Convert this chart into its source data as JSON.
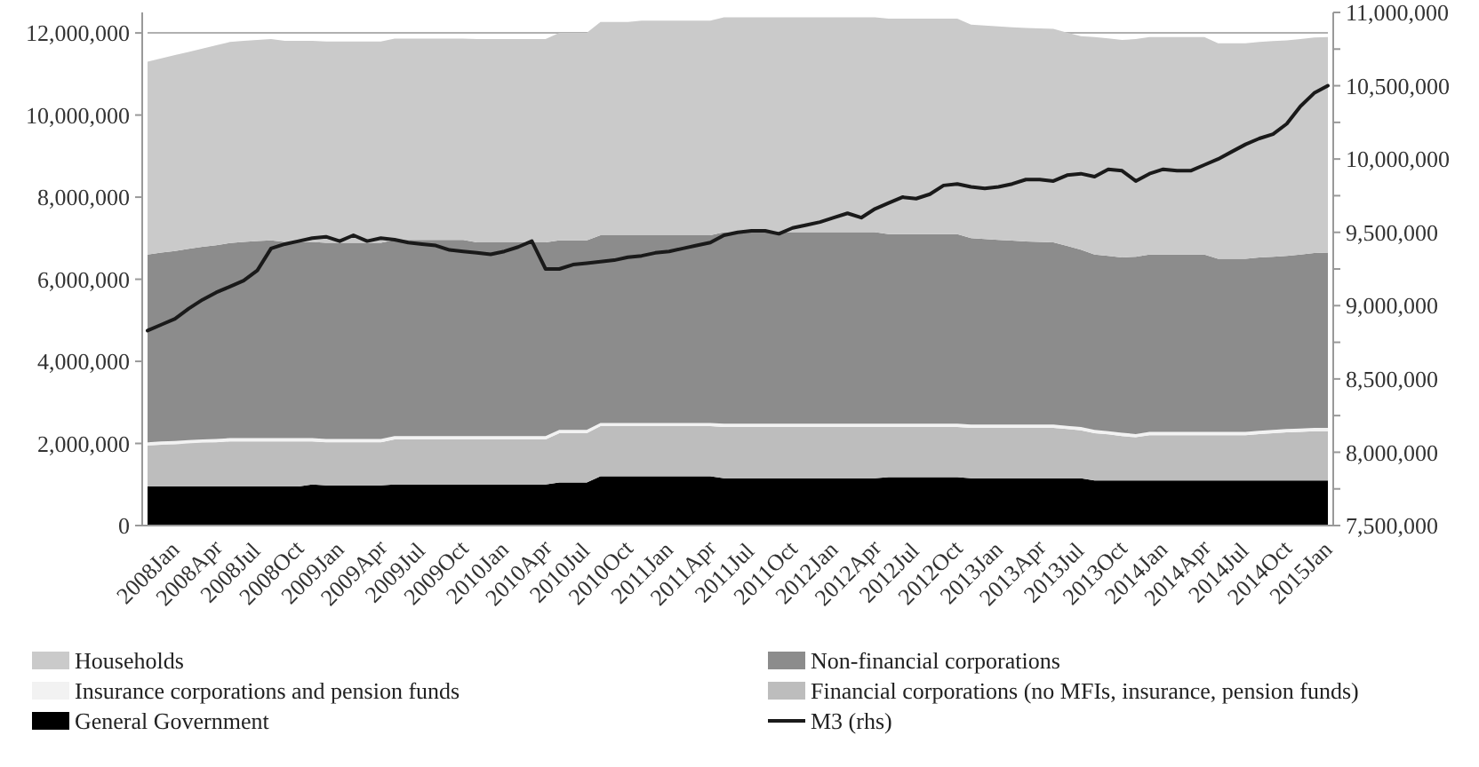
{
  "chart_data": {
    "type": "area",
    "stacked": true,
    "legend": "bottom",
    "grid": "y",
    "categories": [
      "2008Jan",
      null,
      null,
      "2008Apr",
      null,
      null,
      "2008Jul",
      null,
      null,
      "2008Oct",
      null,
      null,
      "2009Jan",
      null,
      null,
      "2009Apr",
      null,
      null,
      "2009Jul",
      null,
      null,
      "2009Oct",
      null,
      null,
      "2010Jan",
      null,
      null,
      "2010Apr",
      null,
      null,
      "2010Jul",
      null,
      null,
      "2010Oct",
      null,
      null,
      "2011Jan",
      null,
      null,
      "2011Apr",
      null,
      null,
      "2011Jul",
      null,
      null,
      "2011Oct",
      null,
      null,
      "2012Jan",
      null,
      null,
      "2012Apr",
      null,
      null,
      "2012Jul",
      null,
      null,
      "2012Oct",
      null,
      null,
      "2013Jan",
      null,
      null,
      "2013Apr",
      null,
      null,
      "2013Jul",
      null,
      null,
      "2013Oct",
      null,
      null,
      "2014Jan",
      null,
      null,
      "2014Apr",
      null,
      null,
      "2014Jul",
      null,
      null,
      "2014Oct",
      null,
      null,
      "2015Jan",
      null,
      null
    ],
    "ylim": [
      0,
      12500000
    ],
    "yticks": [
      0,
      {
        "value": 2000000,
        "label": "2,000,000"
      },
      {
        "value": 4000000,
        "label": "4,000,000"
      },
      {
        "value": 6000000,
        "label": "6,000,000"
      },
      {
        "value": 8000000,
        "label": "8,000,000"
      },
      {
        "value": 10000000,
        "label": "10,000,000"
      },
      {
        "value": 12000000,
        "label": "12,000,000"
      }
    ],
    "y2lim": [
      7500000,
      11000000
    ],
    "y2ticks": [
      {
        "value": 7500000,
        "label": "7,500,000"
      },
      {
        "value": 7750000,
        "label": null
      },
      {
        "value": 8000000,
        "label": "8,000,000"
      },
      {
        "value": 8250000,
        "label": null
      },
      {
        "value": 8500000,
        "label": "8,500,000"
      },
      {
        "value": 8750000,
        "label": null
      },
      {
        "value": 9000000,
        "label": "9,000,000"
      },
      {
        "value": 9250000,
        "label": null
      },
      {
        "value": 9500000,
        "label": "9,500,000"
      },
      {
        "value": 9750000,
        "label": null
      },
      {
        "value": 10000000,
        "label": "10,000,000"
      },
      {
        "value": 10250000,
        "label": null
      },
      {
        "value": 10500000,
        "label": "10,500,000"
      },
      {
        "value": 10750000,
        "label": null
      },
      {
        "value": 11000000,
        "label": "11,000,000"
      }
    ],
    "series": [
      {
        "name": "General Government",
        "color": "#000000",
        "values": [
          950000,
          950000,
          950000,
          950000,
          950000,
          950000,
          950000,
          950000,
          950000,
          950000,
          950000,
          950000,
          1000000,
          980000,
          980000,
          980000,
          980000,
          980000,
          1000000,
          1000000,
          1000000,
          1000000,
          1000000,
          1000000,
          1000000,
          1000000,
          1000000,
          1000000,
          1000000,
          1000000,
          1050000,
          1050000,
          1050000,
          1200000,
          1200000,
          1200000,
          1200000,
          1200000,
          1200000,
          1200000,
          1200000,
          1200000,
          1150000,
          1150000,
          1150000,
          1150000,
          1150000,
          1150000,
          1150000,
          1150000,
          1150000,
          1150000,
          1150000,
          1150000,
          1180000,
          1180000,
          1180000,
          1180000,
          1180000,
          1180000,
          1150000,
          1150000,
          1150000,
          1150000,
          1150000,
          1150000,
          1150000,
          1150000,
          1150000,
          1100000,
          1100000,
          1100000,
          1100000,
          1100000,
          1100000,
          1100000,
          1100000,
          1100000,
          1100000,
          1100000,
          1100000,
          1100000,
          1100000,
          1100000,
          1100000,
          1100000,
          1100000
        ]
      },
      {
        "name": "Financial corporations (no MFIs, insurance, pension funds)",
        "color": "#bdbdbd",
        "values": [
          1000000,
          1020000,
          1030000,
          1050000,
          1070000,
          1080000,
          1100000,
          1100000,
          1100000,
          1100000,
          1100000,
          1100000,
          1050000,
          1050000,
          1050000,
          1050000,
          1050000,
          1050000,
          1100000,
          1100000,
          1100000,
          1100000,
          1100000,
          1100000,
          1100000,
          1100000,
          1100000,
          1100000,
          1100000,
          1100000,
          1200000,
          1200000,
          1200000,
          1220000,
          1220000,
          1220000,
          1220000,
          1220000,
          1220000,
          1220000,
          1220000,
          1220000,
          1250000,
          1250000,
          1250000,
          1250000,
          1250000,
          1250000,
          1250000,
          1250000,
          1250000,
          1250000,
          1250000,
          1250000,
          1220000,
          1220000,
          1220000,
          1220000,
          1220000,
          1220000,
          1230000,
          1230000,
          1230000,
          1230000,
          1230000,
          1230000,
          1230000,
          1200000,
          1170000,
          1150000,
          1120000,
          1080000,
          1050000,
          1100000,
          1100000,
          1100000,
          1100000,
          1100000,
          1100000,
          1100000,
          1100000,
          1130000,
          1150000,
          1170000,
          1180000,
          1200000,
          1200000
        ]
      },
      {
        "name": "Insurance corporations and pension funds",
        "color": "#f2f2f2",
        "values": [
          80000,
          80000,
          80000,
          80000,
          80000,
          80000,
          80000,
          80000,
          80000,
          80000,
          80000,
          80000,
          80000,
          80000,
          80000,
          80000,
          80000,
          80000,
          80000,
          80000,
          80000,
          80000,
          80000,
          80000,
          80000,
          80000,
          80000,
          80000,
          80000,
          80000,
          80000,
          80000,
          80000,
          80000,
          80000,
          80000,
          80000,
          80000,
          80000,
          80000,
          80000,
          80000,
          80000,
          80000,
          80000,
          80000,
          80000,
          80000,
          80000,
          80000,
          80000,
          80000,
          80000,
          80000,
          80000,
          80000,
          80000,
          80000,
          80000,
          80000,
          80000,
          80000,
          80000,
          80000,
          80000,
          80000,
          80000,
          80000,
          80000,
          80000,
          80000,
          80000,
          80000,
          80000,
          80000,
          80000,
          80000,
          80000,
          80000,
          80000,
          80000,
          80000,
          80000,
          80000,
          80000,
          80000,
          80000
        ]
      },
      {
        "name": "Non-financial corporations",
        "color": "#8c8c8c",
        "values": [
          4570000,
          4600000,
          4630000,
          4660000,
          4690000,
          4720000,
          4750000,
          4780000,
          4800000,
          4820000,
          4780000,
          4780000,
          4780000,
          4780000,
          4780000,
          4780000,
          4780000,
          4780000,
          4780000,
          4780000,
          4780000,
          4780000,
          4780000,
          4780000,
          4720000,
          4720000,
          4720000,
          4720000,
          4720000,
          4720000,
          4620000,
          4620000,
          4620000,
          4570000,
          4570000,
          4570000,
          4570000,
          4570000,
          4570000,
          4570000,
          4570000,
          4570000,
          4670000,
          4670000,
          4670000,
          4670000,
          4670000,
          4670000,
          4670000,
          4670000,
          4670000,
          4670000,
          4670000,
          4670000,
          4620000,
          4620000,
          4620000,
          4620000,
          4620000,
          4620000,
          4540000,
          4520000,
          4500000,
          4480000,
          4460000,
          4450000,
          4440000,
          4380000,
          4320000,
          4270000,
          4270000,
          4270000,
          4320000,
          4320000,
          4320000,
          4320000,
          4320000,
          4320000,
          4220000,
          4220000,
          4220000,
          4220000,
          4220000,
          4220000,
          4240000,
          4260000,
          4270000
        ]
      },
      {
        "name": "Households",
        "color": "#cacaca",
        "values": [
          4700000,
          4730000,
          4770000,
          4800000,
          4830000,
          4870000,
          4900000,
          4900000,
          4900000,
          4900000,
          4900000,
          4900000,
          4900000,
          4900000,
          4900000,
          4900000,
          4900000,
          4900000,
          4900000,
          4900000,
          4900000,
          4900000,
          4900000,
          4900000,
          4950000,
          4950000,
          4950000,
          4950000,
          4950000,
          4950000,
          5050000,
          5050000,
          5050000,
          5200000,
          5200000,
          5200000,
          5230000,
          5230000,
          5230000,
          5230000,
          5230000,
          5230000,
          5230000,
          5230000,
          5230000,
          5230000,
          5230000,
          5230000,
          5230000,
          5230000,
          5230000,
          5230000,
          5230000,
          5230000,
          5250000,
          5250000,
          5250000,
          5250000,
          5250000,
          5250000,
          5200000,
          5200000,
          5200000,
          5200000,
          5200000,
          5200000,
          5200000,
          5200000,
          5200000,
          5300000,
          5300000,
          5300000,
          5300000,
          5300000,
          5300000,
          5300000,
          5300000,
          5300000,
          5250000,
          5250000,
          5250000,
          5250000,
          5250000,
          5250000,
          5250000,
          5250000,
          5250000
        ]
      },
      {
        "name": "M3 (rhs)",
        "type": "line",
        "axis": "y2",
        "color": "#1a1a1a",
        "values": [
          8830000,
          8870000,
          8910000,
          8980000,
          9040000,
          9090000,
          9130000,
          9170000,
          9240000,
          9390000,
          9420000,
          9440000,
          9460000,
          9470000,
          9440000,
          9480000,
          9440000,
          9460000,
          9450000,
          9430000,
          9420000,
          9410000,
          9380000,
          9370000,
          9360000,
          9350000,
          9370000,
          9400000,
          9440000,
          9250000,
          9250000,
          9280000,
          9290000,
          9300000,
          9310000,
          9330000,
          9340000,
          9360000,
          9370000,
          9390000,
          9410000,
          9430000,
          9480000,
          9500000,
          9510000,
          9510000,
          9490000,
          9530000,
          9550000,
          9570000,
          9600000,
          9630000,
          9600000,
          9660000,
          9700000,
          9740000,
          9730000,
          9760000,
          9820000,
          9830000,
          9810000,
          9800000,
          9810000,
          9830000,
          9860000,
          9860000,
          9850000,
          9890000,
          9900000,
          9880000,
          9930000,
          9920000,
          9850000,
          9900000,
          9930000,
          9920000,
          9920000,
          9960000,
          10000000,
          10050000,
          10100000,
          10140000,
          10170000,
          10240000,
          10360000,
          10450000,
          10500000
        ]
      }
    ]
  }
}
